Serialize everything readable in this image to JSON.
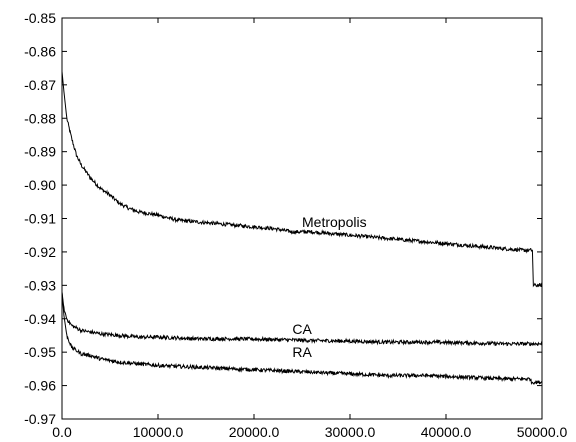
{
  "chart_data": {
    "type": "line",
    "title": "",
    "xlabel": "",
    "ylabel": "",
    "xlim": [
      0,
      50000
    ],
    "ylim": [
      -0.97,
      -0.85
    ],
    "x_ticks": [
      0,
      10000,
      20000,
      30000,
      40000,
      50000
    ],
    "x_tick_labels": [
      "0.0",
      "10000.0",
      "20000.0",
      "30000.0",
      "40000.0",
      "50000.0"
    ],
    "y_ticks": [
      -0.85,
      -0.86,
      -0.87,
      -0.88,
      -0.89,
      -0.9,
      -0.91,
      -0.92,
      -0.93,
      -0.94,
      -0.95,
      -0.96,
      -0.97
    ],
    "y_tick_labels": [
      "-0.85",
      "-0.86",
      "-0.87",
      "-0.88",
      "-0.89",
      "-0.90",
      "-0.91",
      "-0.92",
      "-0.93",
      "-0.94",
      "-0.95",
      "-0.96",
      "-0.97"
    ],
    "grid": false,
    "legend": "none",
    "series": [
      {
        "name": "Metropolis",
        "color": "#000000",
        "label_at": [
          25000,
          -0.9125
        ],
        "x": [
          0,
          200,
          500,
          1000,
          1500,
          2000,
          3000,
          4000,
          5000,
          6000,
          7000,
          8000,
          10000,
          12000,
          14000,
          16000,
          18000,
          20000,
          22000,
          24000,
          26000,
          28000,
          30000,
          32000,
          34000,
          36000,
          38000,
          40000,
          42000,
          44000,
          46000,
          48000,
          49000,
          49100,
          50000
        ],
        "y": [
          -0.866,
          -0.872,
          -0.88,
          -0.886,
          -0.891,
          -0.894,
          -0.898,
          -0.901,
          -0.903,
          -0.9055,
          -0.907,
          -0.908,
          -0.909,
          -0.9105,
          -0.911,
          -0.9115,
          -0.912,
          -0.9125,
          -0.913,
          -0.914,
          -0.914,
          -0.9145,
          -0.915,
          -0.9155,
          -0.916,
          -0.9165,
          -0.917,
          -0.9175,
          -0.918,
          -0.9185,
          -0.919,
          -0.9195,
          -0.9195,
          -0.93,
          -0.93
        ]
      },
      {
        "name": "CA",
        "color": "#000000",
        "label_at": [
          24000,
          -0.9445
        ],
        "x": [
          0,
          200,
          500,
          1000,
          2000,
          3000,
          4000,
          6000,
          8000,
          10000,
          14000,
          18000,
          22000,
          26000,
          30000,
          34000,
          38000,
          42000,
          46000,
          49000,
          50000
        ],
        "y": [
          -0.932,
          -0.937,
          -0.94,
          -0.942,
          -0.9435,
          -0.944,
          -0.9445,
          -0.945,
          -0.9455,
          -0.9455,
          -0.946,
          -0.946,
          -0.9462,
          -0.9465,
          -0.9467,
          -0.947,
          -0.947,
          -0.9472,
          -0.9475,
          -0.9475,
          -0.9475
        ]
      },
      {
        "name": "RA",
        "color": "#000000",
        "label_at": [
          24000,
          -0.9515
        ],
        "x": [
          0,
          200,
          500,
          1000,
          2000,
          3000,
          4000,
          6000,
          8000,
          10000,
          14000,
          18000,
          22000,
          26000,
          30000,
          34000,
          38000,
          42000,
          46000,
          48800,
          48900,
          50000
        ],
        "y": [
          -0.932,
          -0.939,
          -0.945,
          -0.9485,
          -0.9505,
          -0.951,
          -0.952,
          -0.953,
          -0.9535,
          -0.954,
          -0.9545,
          -0.955,
          -0.9555,
          -0.956,
          -0.9565,
          -0.957,
          -0.957,
          -0.9575,
          -0.958,
          -0.958,
          -0.959,
          -0.959
        ]
      }
    ]
  }
}
